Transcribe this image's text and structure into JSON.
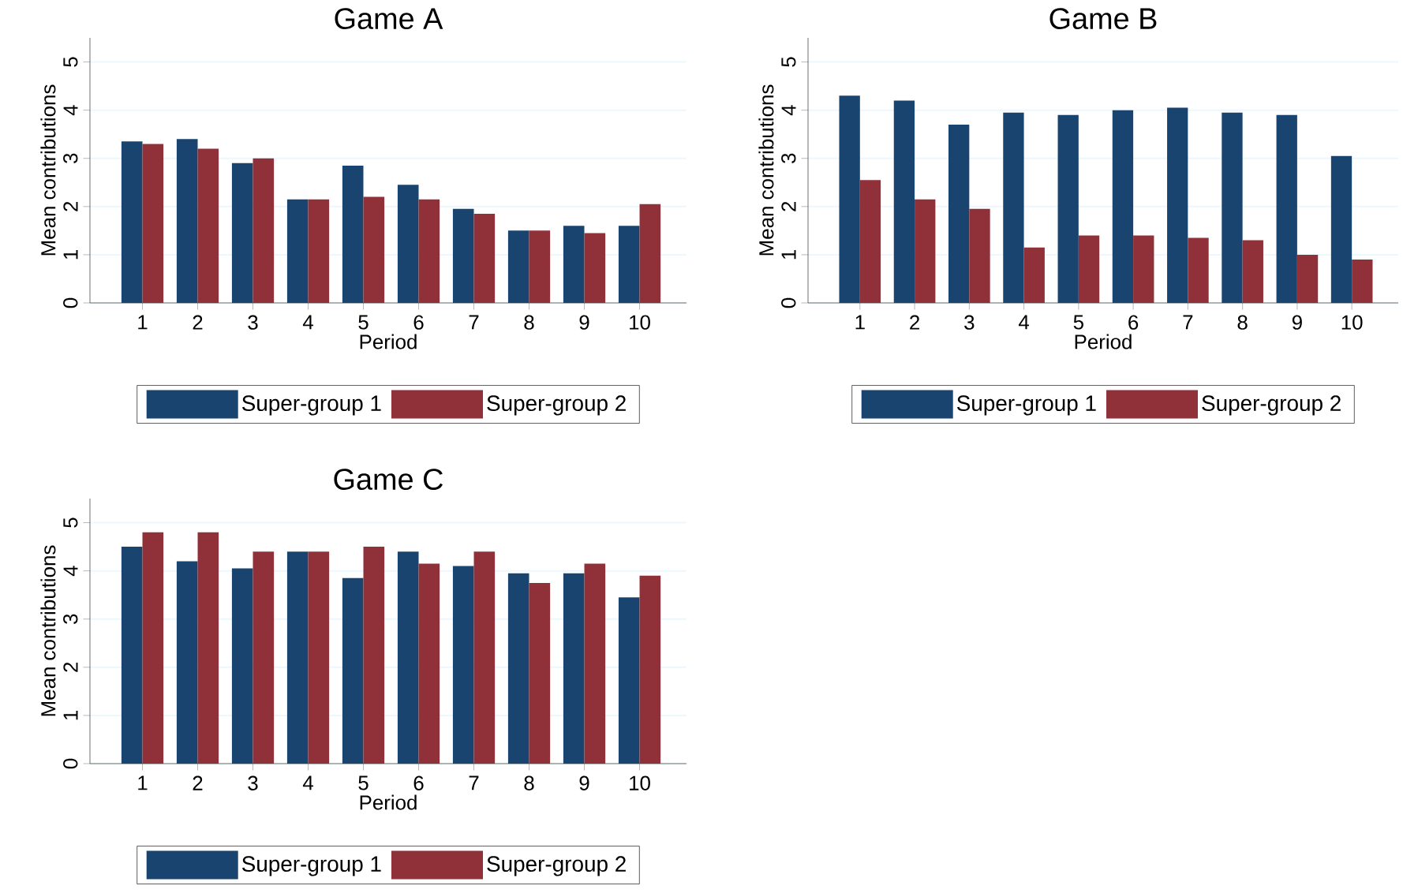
{
  "chart_data": [
    {
      "type": "bar",
      "title": "Game A",
      "xlabel": "Period",
      "ylabel": "Mean contributions",
      "categories": [
        "1",
        "2",
        "3",
        "4",
        "5",
        "6",
        "7",
        "8",
        "9",
        "10"
      ],
      "series": [
        {
          "name": "Super-group 1",
          "color": "#1a4470",
          "values": [
            3.35,
            3.4,
            2.9,
            2.15,
            2.85,
            2.45,
            1.95,
            1.5,
            1.6,
            1.6
          ]
        },
        {
          "name": "Super-group 2",
          "color": "#903039",
          "values": [
            3.3,
            3.2,
            3.0,
            2.15,
            2.2,
            2.15,
            1.85,
            1.5,
            1.45,
            2.05
          ]
        }
      ],
      "ylim": [
        0,
        5.5
      ],
      "yticks": [
        0,
        1,
        2,
        3,
        4,
        5
      ],
      "grid": "y",
      "legend": "bottom"
    },
    {
      "type": "bar",
      "title": "Game B",
      "xlabel": "Period",
      "ylabel": "Mean contributions",
      "categories": [
        "1",
        "2",
        "3",
        "4",
        "5",
        "6",
        "7",
        "8",
        "9",
        "10"
      ],
      "series": [
        {
          "name": "Super-group 1",
          "color": "#1a4470",
          "values": [
            4.3,
            4.2,
            3.7,
            3.95,
            3.9,
            4.0,
            4.05,
            3.95,
            3.9,
            3.05
          ]
        },
        {
          "name": "Super-group 2",
          "color": "#903039",
          "values": [
            2.55,
            2.15,
            1.95,
            1.15,
            1.4,
            1.4,
            1.35,
            1.3,
            1.0,
            0.9
          ]
        }
      ],
      "ylim": [
        0,
        5.5
      ],
      "yticks": [
        0,
        1,
        2,
        3,
        4,
        5
      ],
      "grid": "y",
      "legend": "bottom"
    },
    {
      "type": "bar",
      "title": "Game C",
      "xlabel": "Period",
      "ylabel": "Mean contributions",
      "categories": [
        "1",
        "2",
        "3",
        "4",
        "5",
        "6",
        "7",
        "8",
        "9",
        "10"
      ],
      "series": [
        {
          "name": "Super-group 1",
          "color": "#1a4470",
          "values": [
            4.5,
            4.2,
            4.05,
            4.4,
            3.85,
            4.4,
            4.1,
            3.95,
            3.95,
            3.45
          ]
        },
        {
          "name": "Super-group 2",
          "color": "#903039",
          "values": [
            4.8,
            4.8,
            4.4,
            4.4,
            4.5,
            4.15,
            4.4,
            3.75,
            4.15,
            3.9
          ]
        }
      ],
      "ylim": [
        0,
        5.5
      ],
      "yticks": [
        0,
        1,
        2,
        3,
        4,
        5
      ],
      "grid": "y",
      "legend": "bottom"
    }
  ]
}
